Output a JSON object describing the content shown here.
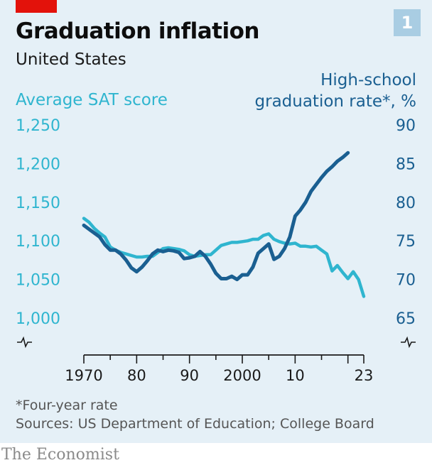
{
  "header": {
    "title": "Graduation inflation",
    "subtitle": "United States",
    "badge": "1"
  },
  "chart_data": {
    "type": "line",
    "title": "Graduation inflation",
    "subtitle": "United States",
    "x_tick_labels": [
      "1970",
      "80",
      "90",
      "2000",
      "10",
      "23"
    ],
    "x_ticks": [
      1970,
      1975,
      1980,
      1985,
      1990,
      1995,
      2000,
      2005,
      2010,
      2015,
      2020,
      2023
    ],
    "xlim": [
      1970,
      2023
    ],
    "left_axis": {
      "label": "Average SAT score",
      "ylim": [
        1000,
        1250
      ],
      "ticks": [
        1250,
        1200,
        1150,
        1100,
        1050,
        1000
      ],
      "tick_labels": [
        "1,250",
        "1,200",
        "1,150",
        "1,100",
        "1,050",
        "1,000"
      ],
      "color": "#2fb5cf"
    },
    "right_axis": {
      "label_line1": "High-school",
      "label_line2": "graduation rate*, %",
      "ylim": [
        65,
        90
      ],
      "ticks": [
        90,
        85,
        80,
        75,
        70,
        65
      ],
      "tick_labels": [
        "90",
        "85",
        "80",
        "75",
        "70",
        "65"
      ],
      "color": "#1a5f91"
    },
    "series": [
      {
        "axis": "left",
        "color": "#2fb5cf",
        "points": [
          [
            1970,
            1129
          ],
          [
            1971,
            1124
          ],
          [
            1972,
            1116
          ],
          [
            1973,
            1110
          ],
          [
            1974,
            1105
          ],
          [
            1975,
            1092
          ],
          [
            1976,
            1088
          ],
          [
            1977,
            1085
          ],
          [
            1978,
            1083
          ],
          [
            1979,
            1081
          ],
          [
            1980,
            1079
          ],
          [
            1981,
            1079
          ],
          [
            1982,
            1080
          ],
          [
            1983,
            1080
          ],
          [
            1984,
            1085
          ],
          [
            1985,
            1090
          ],
          [
            1986,
            1091
          ],
          [
            1987,
            1090
          ],
          [
            1988,
            1089
          ],
          [
            1989,
            1087
          ],
          [
            1990,
            1082
          ],
          [
            1991,
            1080
          ],
          [
            1992,
            1081
          ],
          [
            1993,
            1082
          ],
          [
            1994,
            1082
          ],
          [
            1995,
            1088
          ],
          [
            1996,
            1094
          ],
          [
            1997,
            1096
          ],
          [
            1998,
            1098
          ],
          [
            1999,
            1098
          ],
          [
            2000,
            1099
          ],
          [
            2001,
            1100
          ],
          [
            2002,
            1102
          ],
          [
            2003,
            1102
          ],
          [
            2004,
            1107
          ],
          [
            2005,
            1109
          ],
          [
            2006,
            1102
          ],
          [
            2007,
            1099
          ],
          [
            2008,
            1097
          ],
          [
            2009,
            1096
          ],
          [
            2010,
            1097
          ],
          [
            2011,
            1093
          ],
          [
            2012,
            1093
          ],
          [
            2013,
            1092
          ],
          [
            2014,
            1093
          ],
          [
            2015,
            1088
          ],
          [
            2016,
            1083
          ],
          [
            2017,
            1061
          ],
          [
            2018,
            1068
          ],
          [
            2019,
            1059
          ],
          [
            2020,
            1051
          ],
          [
            2021,
            1060
          ],
          [
            2022,
            1050
          ],
          [
            2023,
            1028
          ]
        ]
      },
      {
        "axis": "right",
        "color": "#1a5f91",
        "points": [
          [
            1970,
            77.0
          ],
          [
            1971,
            76.5
          ],
          [
            1972,
            76.0
          ],
          [
            1973,
            75.5
          ],
          [
            1974,
            74.5
          ],
          [
            1975,
            73.8
          ],
          [
            1976,
            73.8
          ],
          [
            1977,
            73.3
          ],
          [
            1978,
            72.5
          ],
          [
            1979,
            71.5
          ],
          [
            1980,
            71.0
          ],
          [
            1981,
            71.6
          ],
          [
            1982,
            72.4
          ],
          [
            1983,
            73.3
          ],
          [
            1984,
            73.8
          ],
          [
            1985,
            73.6
          ],
          [
            1986,
            73.8
          ],
          [
            1987,
            73.7
          ],
          [
            1988,
            73.5
          ],
          [
            1989,
            72.7
          ],
          [
            1990,
            72.8
          ],
          [
            1991,
            73.0
          ],
          [
            1992,
            73.6
          ],
          [
            1993,
            73.0
          ],
          [
            1994,
            72.0
          ],
          [
            1995,
            70.8
          ],
          [
            1996,
            70.1
          ],
          [
            1997,
            70.1
          ],
          [
            1998,
            70.4
          ],
          [
            1999,
            70.0
          ],
          [
            2000,
            70.6
          ],
          [
            2001,
            70.6
          ],
          [
            2002,
            71.6
          ],
          [
            2003,
            73.4
          ],
          [
            2004,
            74.0
          ],
          [
            2005,
            74.6
          ],
          [
            2006,
            72.6
          ],
          [
            2007,
            73.0
          ],
          [
            2008,
            74.0
          ],
          [
            2009,
            75.5
          ],
          [
            2010,
            78.2
          ],
          [
            2011,
            79.0
          ],
          [
            2012,
            80.0
          ],
          [
            2013,
            81.4
          ],
          [
            2014,
            82.3
          ],
          [
            2015,
            83.2
          ],
          [
            2016,
            84.0
          ],
          [
            2017,
            84.6
          ],
          [
            2018,
            85.3
          ],
          [
            2019,
            85.8
          ],
          [
            2020,
            86.4
          ]
        ]
      }
    ],
    "grid": false,
    "legend": "axis labels"
  },
  "footer": {
    "footnote": "*Four-year rate",
    "sources": "Sources: US Department of Education; College Board",
    "brand": "The Economist"
  }
}
